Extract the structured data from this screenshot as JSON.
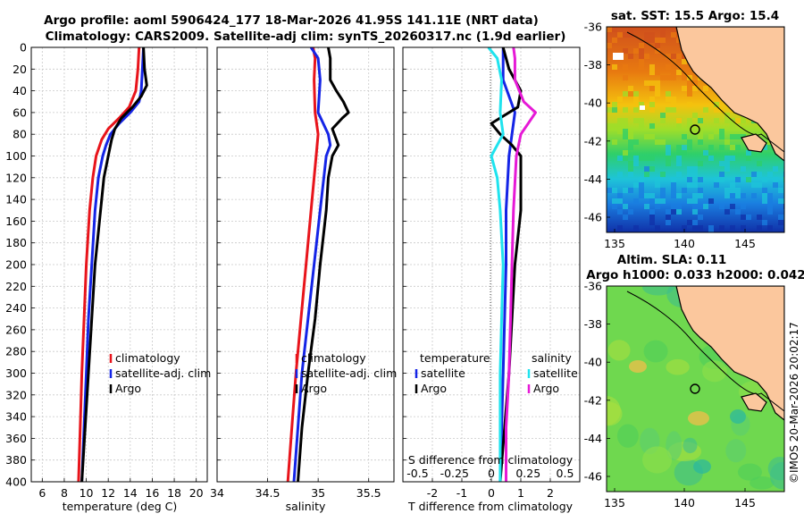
{
  "header": {
    "title_line1": "Argo profile: aoml 5906424_177 18-Mar-2026 41.95S 141.11E (NRT data)",
    "title_line2": "Climatology: CARS2009. Satellite-adj clim: synTS_20260317.nc (1.9d earlier)"
  },
  "colors": {
    "climatology": "#e8141b",
    "satellite": "#1424e6",
    "argo": "#000000",
    "sat_diff": "#1fe3ee",
    "sal_diff": "#e619d6",
    "land": "#fbc79d",
    "grid": "#c9c9c9"
  },
  "depth_axis": {
    "ticks": [
      "0",
      "20",
      "40",
      "60",
      "80",
      "100",
      "120",
      "140",
      "160",
      "180",
      "200",
      "220",
      "240",
      "260",
      "280",
      "300",
      "320",
      "340",
      "360",
      "380",
      "400"
    ]
  },
  "chart_data": [
    {
      "id": "temperature",
      "type": "line",
      "xlabel": "temperature (deg C)",
      "ylabel": "",
      "xlim": [
        5,
        21
      ],
      "ylim": [
        0,
        400
      ],
      "xticks": [
        "6",
        "8",
        "10",
        "12",
        "14",
        "16",
        "18",
        "20"
      ],
      "xtick_values": [
        6,
        8,
        10,
        12,
        14,
        16,
        18,
        20
      ],
      "legend": [
        "climatology",
        "satellite-adj. clim",
        "Argo"
      ],
      "series": [
        {
          "name": "climatology",
          "color": "#e8141b",
          "depth": [
            0,
            20,
            40,
            55,
            65,
            75,
            85,
            100,
            120,
            150,
            200,
            250,
            300,
            350,
            400
          ],
          "values": [
            14.8,
            14.7,
            14.5,
            13.9,
            13.0,
            12.0,
            11.4,
            10.9,
            10.6,
            10.3,
            10.0,
            9.8,
            9.6,
            9.45,
            9.3
          ]
        },
        {
          "name": "satellite-adj. clim",
          "color": "#1424e6",
          "depth": [
            0,
            20,
            40,
            50,
            60,
            70,
            80,
            90,
            100,
            120,
            150,
            200,
            250,
            300,
            350,
            400
          ],
          "values": [
            15.2,
            15.1,
            15.0,
            14.8,
            14.0,
            13.0,
            12.2,
            11.8,
            11.5,
            11.1,
            10.8,
            10.5,
            10.2,
            10.0,
            9.8,
            9.6
          ]
        },
        {
          "name": "Argo",
          "color": "#000000",
          "depth": [
            0,
            20,
            35,
            45,
            55,
            65,
            75,
            85,
            100,
            120,
            150,
            180,
            200,
            250,
            300,
            350,
            400
          ],
          "values": [
            15.2,
            15.3,
            15.5,
            15.0,
            14.2,
            13.2,
            12.6,
            12.3,
            12.0,
            11.6,
            11.3,
            11.0,
            10.8,
            10.5,
            10.2,
            9.9,
            9.6
          ]
        }
      ]
    },
    {
      "id": "salinity",
      "type": "line",
      "xlabel": "salinity",
      "ylabel": "",
      "xlim": [
        34.0,
        35.75
      ],
      "ylim": [
        0,
        400
      ],
      "xticks": [
        "34",
        "34.5",
        "35",
        "35.5"
      ],
      "xtick_values": [
        34,
        34.5,
        35,
        35.5
      ],
      "legend": [
        "climatology",
        "satellite-adj. clim",
        "Argo"
      ],
      "series": [
        {
          "name": "climatology",
          "color": "#e8141b",
          "depth": [
            0,
            5,
            10,
            30,
            60,
            80,
            100,
            150,
            200,
            250,
            300,
            350,
            400
          ],
          "values": [
            34.95,
            34.96,
            34.97,
            34.96,
            34.97,
            35.0,
            34.98,
            34.93,
            34.88,
            34.83,
            34.78,
            34.74,
            34.7
          ]
        },
        {
          "name": "satellite-adj. clim",
          "color": "#1424e6",
          "depth": [
            0,
            10,
            30,
            60,
            80,
            90,
            100,
            150,
            200,
            250,
            300,
            350,
            400
          ],
          "values": [
            34.93,
            35.0,
            35.02,
            35.0,
            35.1,
            35.12,
            35.08,
            35.02,
            34.96,
            34.9,
            34.84,
            34.8,
            34.76
          ]
        },
        {
          "name": "Argo",
          "color": "#000000",
          "depth": [
            0,
            10,
            30,
            40,
            50,
            60,
            65,
            75,
            90,
            100,
            120,
            150,
            200,
            250,
            300,
            350,
            400
          ],
          "values": [
            35.1,
            35.12,
            35.12,
            35.18,
            35.25,
            35.3,
            35.24,
            35.14,
            35.2,
            35.14,
            35.1,
            35.08,
            35.02,
            34.97,
            34.9,
            34.84,
            34.8
          ]
        }
      ]
    },
    {
      "id": "difference",
      "type": "line",
      "xlabel": "T difference from climatology",
      "xlabel_top": "S difference from climatology",
      "ylabel": "",
      "xlim": [
        -3,
        3
      ],
      "ylim": [
        0,
        400
      ],
      "xticks": [
        "-2",
        "-1",
        "0",
        "1",
        "2"
      ],
      "xtick_values": [
        -2,
        -1,
        0,
        1,
        2
      ],
      "sticks": [
        "-0.5",
        "-0.25",
        "0",
        "0.25",
        "0.5"
      ],
      "stick_values": [
        -0.5,
        -0.25,
        0,
        0.25,
        0.5
      ],
      "s_scale": 2.5,
      "legend_left": [
        "temperature",
        "satellite",
        "Argo"
      ],
      "legend_right": [
        "salinity",
        "satellite",
        "Argo"
      ],
      "series": [
        {
          "name": "temperature satellite",
          "color": "#1424e6",
          "depth": [
            0,
            30,
            60,
            80,
            100,
            150,
            200,
            300,
            400
          ],
          "values": [
            0.4,
            0.4,
            0.8,
            0.7,
            0.6,
            0.5,
            0.5,
            0.4,
            0.3
          ]
        },
        {
          "name": "temperature Argo",
          "color": "#000000",
          "depth": [
            0,
            20,
            40,
            55,
            65,
            70,
            80,
            90,
            100,
            150,
            200,
            300,
            400
          ],
          "values": [
            0.4,
            0.6,
            1.0,
            0.9,
            0.3,
            0.0,
            0.3,
            0.7,
            1.0,
            1.0,
            0.8,
            0.6,
            0.3
          ]
        },
        {
          "name": "salinity satellite",
          "color": "#1fe3ee",
          "depth": [
            0,
            10,
            30,
            60,
            80,
            100,
            120,
            150,
            200,
            250,
            300,
            350,
            400
          ],
          "values": [
            -0.02,
            0.04,
            0.07,
            0.06,
            0.08,
            0.0,
            0.04,
            0.06,
            0.08,
            0.07,
            0.06,
            0.06,
            0.06
          ]
        },
        {
          "name": "salinity Argo",
          "color": "#e619d6",
          "depth": [
            0,
            10,
            30,
            50,
            60,
            70,
            80,
            100,
            150,
            200,
            250,
            300,
            350,
            400
          ],
          "values": [
            0.15,
            0.16,
            0.16,
            0.22,
            0.3,
            0.25,
            0.2,
            0.17,
            0.15,
            0.14,
            0.13,
            0.12,
            0.1,
            0.1
          ]
        }
      ]
    }
  ],
  "maps": {
    "sst_title": "sat. SST: 15.5 Argo: 15.4",
    "sla_title1": "Altim. SLA: 0.11",
    "sla_title2": "Argo h1000: 0.033 h2000: 0.042",
    "lat_ticks": [
      "-36",
      "-38",
      "-40",
      "-42",
      "-44",
      "-46"
    ],
    "lon_ticks": [
      "135",
      "140",
      "145"
    ]
  },
  "footer": {
    "credit": "©IMOS 20-Mar-2026 20:02:17"
  }
}
